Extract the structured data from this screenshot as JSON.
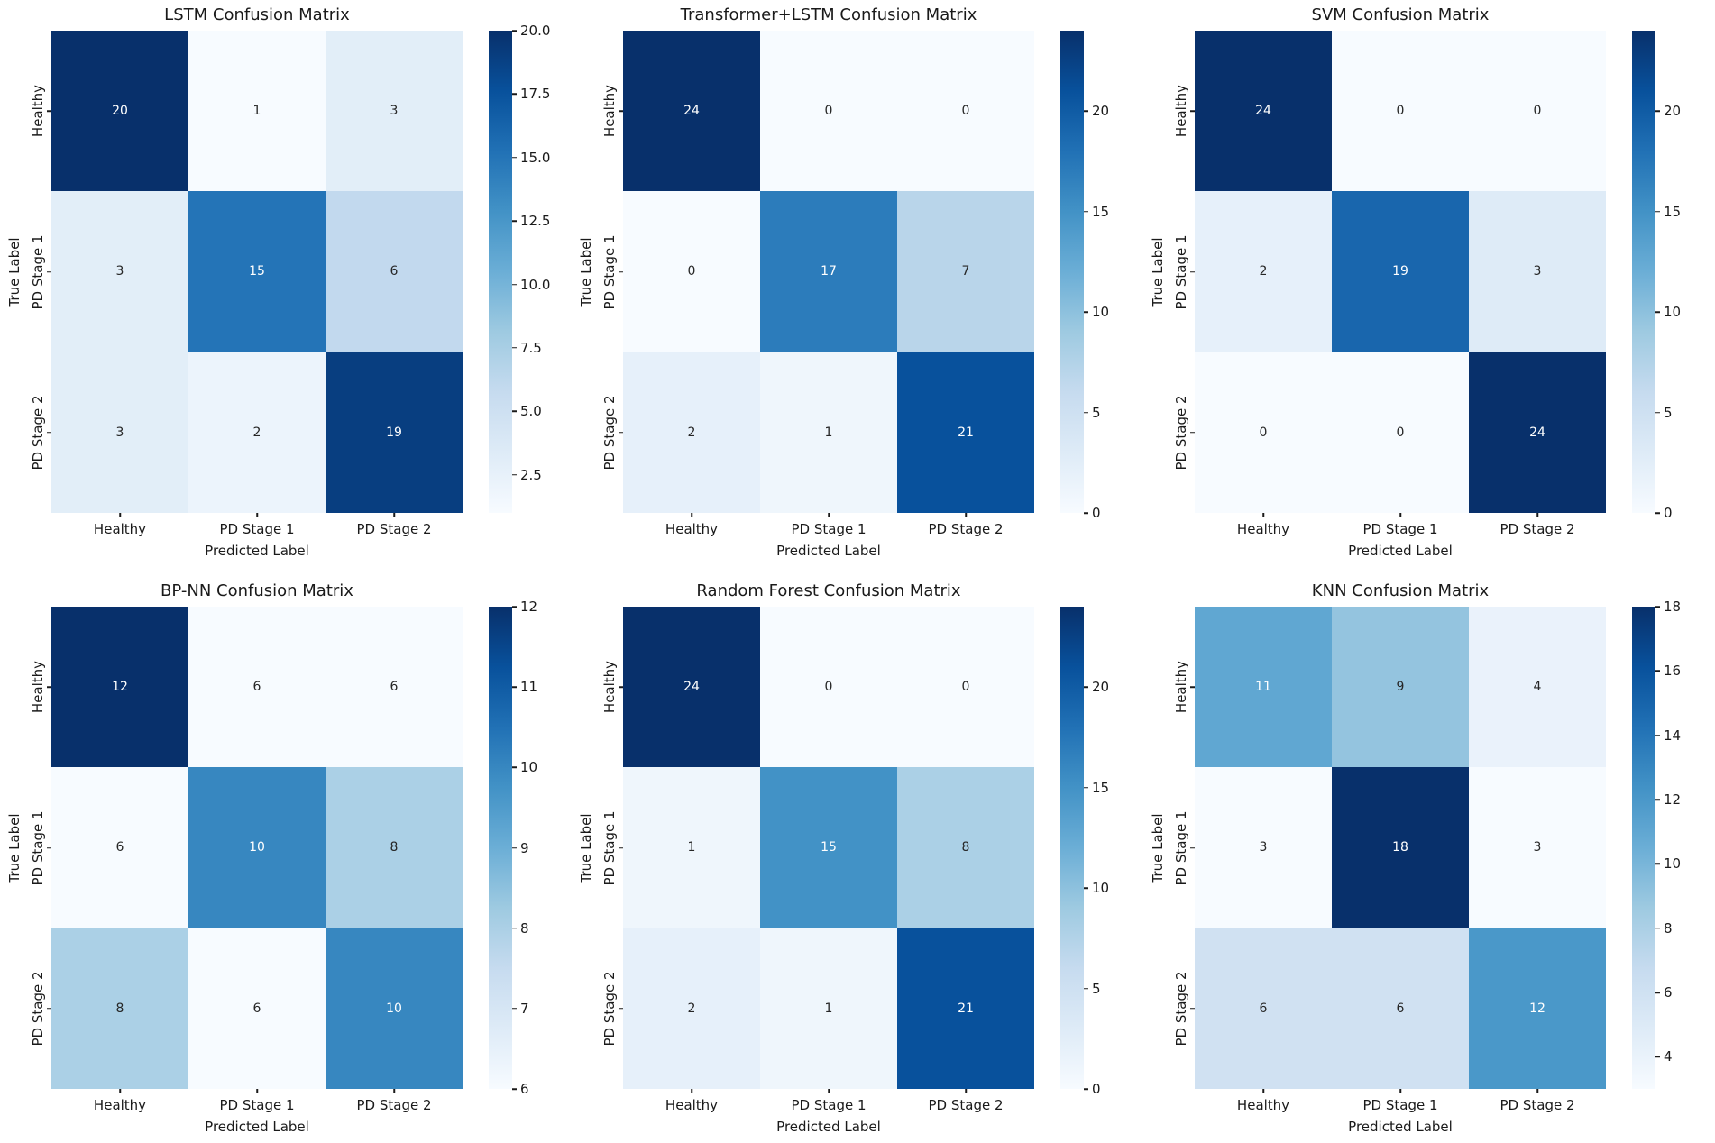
{
  "page": {
    "background": "#ffffff"
  },
  "text_colors": {
    "axis": "#1a1a1a",
    "annotation_dark": "#262626",
    "annotation_light": "#ffffff"
  },
  "colormap_stops": [
    "#f7fbff",
    "#deebf7",
    "#c6dbef",
    "#9ecae1",
    "#6baed6",
    "#4292c6",
    "#2171b5",
    "#08519c",
    "#08306b"
  ],
  "chart_data": [
    {
      "type": "heatmap",
      "title": "LSTM Confusion Matrix",
      "x_label": "Predicted Label",
      "y_label": "True Label",
      "x_tick_labels": [
        "Healthy",
        "PD Stage 1",
        "PD Stage 2"
      ],
      "y_tick_labels": [
        "Healthy",
        "PD Stage 1",
        "PD Stage 2"
      ],
      "values": [
        [
          20,
          1,
          3
        ],
        [
          3,
          15,
          6
        ],
        [
          3,
          2,
          19
        ]
      ],
      "vmin": 1,
      "vmax": 20,
      "colorbar_tick_values": [
        2.5,
        5,
        7.5,
        10,
        12.5,
        15,
        17.5,
        20
      ],
      "colorbar_tick_labels": [
        "2.5",
        "5.0",
        "7.5",
        "10.0",
        "12.5",
        "15.0",
        "17.5",
        "20.0"
      ],
      "colormap": "Blues",
      "legend_position": "right-colorbar",
      "grid": false
    },
    {
      "type": "heatmap",
      "title": "Transformer+LSTM Confusion Matrix",
      "x_label": "Predicted Label",
      "y_label": "True Label",
      "x_tick_labels": [
        "Healthy",
        "PD Stage 1",
        "PD Stage 2"
      ],
      "y_tick_labels": [
        "Healthy",
        "PD Stage 1",
        "PD Stage 2"
      ],
      "values": [
        [
          24,
          0,
          0
        ],
        [
          0,
          17,
          7
        ],
        [
          2,
          1,
          21
        ]
      ],
      "vmin": 0,
      "vmax": 24,
      "colorbar_tick_values": [
        0,
        5,
        10,
        15,
        20
      ],
      "colorbar_tick_labels": [
        "0",
        "5",
        "10",
        "15",
        "20"
      ],
      "colormap": "Blues",
      "legend_position": "right-colorbar",
      "grid": false
    },
    {
      "type": "heatmap",
      "title": "SVM Confusion Matrix",
      "x_label": "Predicted Label",
      "y_label": "True Label",
      "x_tick_labels": [
        "Healthy",
        "PD Stage 1",
        "PD Stage 2"
      ],
      "y_tick_labels": [
        "Healthy",
        "PD Stage 1",
        "PD Stage 2"
      ],
      "values": [
        [
          24,
          0,
          0
        ],
        [
          2,
          19,
          3
        ],
        [
          0,
          0,
          24
        ]
      ],
      "vmin": 0,
      "vmax": 24,
      "colorbar_tick_values": [
        0,
        5,
        10,
        15,
        20
      ],
      "colorbar_tick_labels": [
        "0",
        "5",
        "10",
        "15",
        "20"
      ],
      "colormap": "Blues",
      "legend_position": "right-colorbar",
      "grid": false
    },
    {
      "type": "heatmap",
      "title": "BP-NN Confusion Matrix",
      "x_label": "Predicted Label",
      "y_label": "True Label",
      "x_tick_labels": [
        "Healthy",
        "PD Stage 1",
        "PD Stage 2"
      ],
      "y_tick_labels": [
        "Healthy",
        "PD Stage 1",
        "PD Stage 2"
      ],
      "values": [
        [
          12,
          6,
          6
        ],
        [
          6,
          10,
          8
        ],
        [
          8,
          6,
          10
        ]
      ],
      "vmin": 6,
      "vmax": 12,
      "colorbar_tick_values": [
        6,
        7,
        8,
        9,
        10,
        11,
        12
      ],
      "colorbar_tick_labels": [
        "6",
        "7",
        "8",
        "9",
        "10",
        "11",
        "12"
      ],
      "colormap": "Blues",
      "legend_position": "right-colorbar",
      "grid": false
    },
    {
      "type": "heatmap",
      "title": "Random Forest Confusion Matrix",
      "x_label": "Predicted Label",
      "y_label": "True Label",
      "x_tick_labels": [
        "Healthy",
        "PD Stage 1",
        "PD Stage 2"
      ],
      "y_tick_labels": [
        "Healthy",
        "PD Stage 1",
        "PD Stage 2"
      ],
      "values": [
        [
          24,
          0,
          0
        ],
        [
          1,
          15,
          8
        ],
        [
          2,
          1,
          21
        ]
      ],
      "vmin": 0,
      "vmax": 24,
      "colorbar_tick_values": [
        0,
        5,
        10,
        15,
        20
      ],
      "colorbar_tick_labels": [
        "0",
        "5",
        "10",
        "15",
        "20"
      ],
      "colormap": "Blues",
      "legend_position": "right-colorbar",
      "grid": false
    },
    {
      "type": "heatmap",
      "title": "KNN Confusion Matrix",
      "x_label": "Predicted Label",
      "y_label": "True Label",
      "x_tick_labels": [
        "Healthy",
        "PD Stage 1",
        "PD Stage 2"
      ],
      "y_tick_labels": [
        "Healthy",
        "PD Stage 1",
        "PD Stage 2"
      ],
      "values": [
        [
          11,
          9,
          4
        ],
        [
          3,
          18,
          3
        ],
        [
          6,
          6,
          12
        ]
      ],
      "vmin": 3,
      "vmax": 18,
      "colorbar_tick_values": [
        4,
        6,
        8,
        10,
        12,
        14,
        16,
        18
      ],
      "colorbar_tick_labels": [
        "4",
        "6",
        "8",
        "10",
        "12",
        "14",
        "16",
        "18"
      ],
      "colormap": "Blues",
      "legend_position": "right-colorbar",
      "grid": false
    }
  ]
}
